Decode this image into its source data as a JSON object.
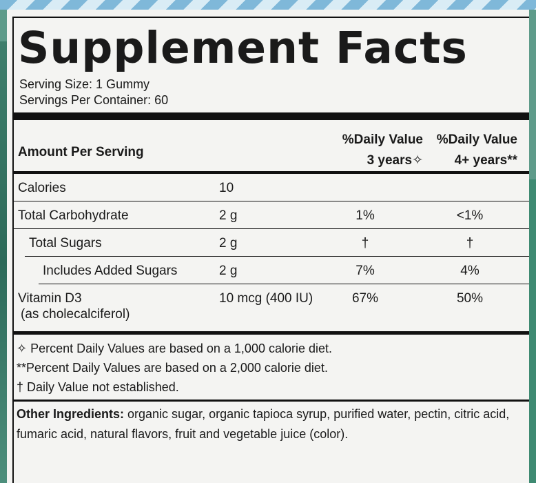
{
  "title": "Supplement Facts",
  "serving_size": "Serving Size: 1 Gummy",
  "servings_per_container": "Servings Per Container: 60",
  "header": {
    "amount_per_serving": "Amount Per Serving",
    "dv_3_line1": "%Daily Value",
    "dv_3_line2": "3 years✧",
    "dv_4_line1": "%Daily Value",
    "dv_4_line2": "4+ years**"
  },
  "rows": [
    {
      "name": "Calories",
      "amount": "10",
      "dv3": "",
      "dv4": ""
    },
    {
      "name": "Total Carbohydrate",
      "amount": "2 g",
      "dv3": "1%",
      "dv4": "<1%"
    },
    {
      "name": "Total Sugars",
      "amount": "2 g",
      "dv3": "†",
      "dv4": "†"
    },
    {
      "name": "Includes Added Sugars",
      "amount": "2 g",
      "dv3": "7%",
      "dv4": "4%"
    },
    {
      "name": "Vitamin D3",
      "sub": "(as cholecalciferol)",
      "amount": "10 mcg (400 IU)",
      "dv3": "67%",
      "dv4": "50%"
    }
  ],
  "footnotes": [
    "✧ Percent Daily Values are based on a 1,000 calorie diet.",
    "**Percent Daily Values are based on a 2,000 calorie diet.",
    "† Daily Value not established."
  ],
  "other_ingredients": {
    "label": "Other Ingredients:",
    "text": " organic sugar, organic tapioca syrup, purified water, pectin, citric acid, fumaric acid, natural flavors, fruit and vegetable juice (color)."
  }
}
